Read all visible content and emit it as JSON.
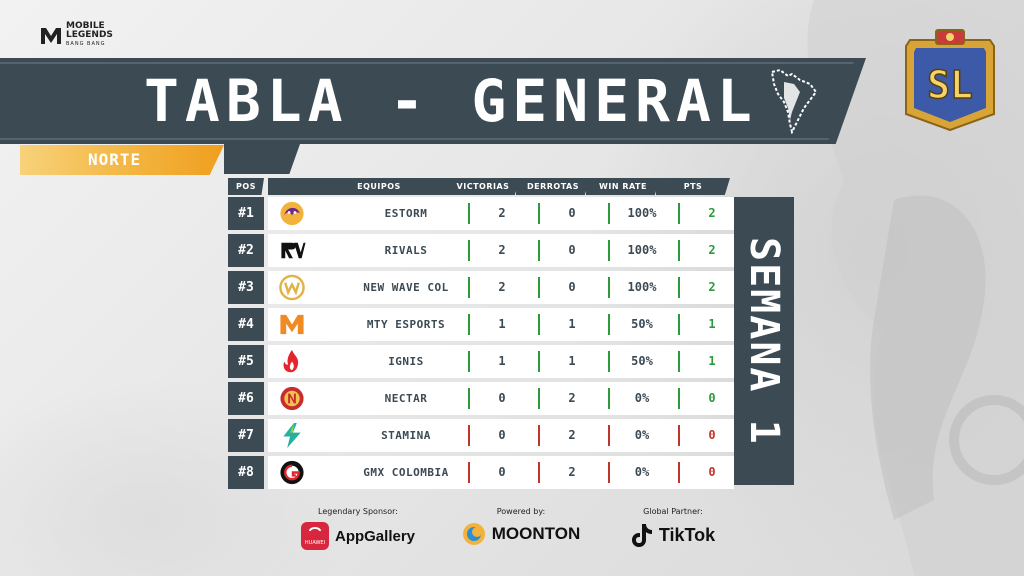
{
  "brand": {
    "logo_line1": "MOBILE",
    "logo_line2": "LEGENDS",
    "logo_sub": "BANG BANG"
  },
  "title": "TABLA - GENERAL",
  "region_tab": "NORTE",
  "week_label": "SEMANA 1",
  "table": {
    "headers": {
      "pos": "POS",
      "team": "EQUIPOS",
      "wins": "VICTORIAS",
      "losses": "DERROTAS",
      "winrate": "WIN RATE",
      "pts": "PTS"
    },
    "rows": [
      {
        "pos": "#1",
        "team": "ESTORM",
        "wins": "2",
        "losses": "0",
        "winrate": "100%",
        "pts": "2",
        "status": "green",
        "logo": "estorm-snake-icon"
      },
      {
        "pos": "#2",
        "team": "RIVALS",
        "wins": "2",
        "losses": "0",
        "winrate": "100%",
        "pts": "2",
        "status": "green",
        "logo": "rivals-rv-icon"
      },
      {
        "pos": "#3",
        "team": "NEW WAVE COL",
        "wins": "2",
        "losses": "0",
        "winrate": "100%",
        "pts": "2",
        "status": "green",
        "logo": "new-wave-icon"
      },
      {
        "pos": "#4",
        "team": "MTY ESPORTS",
        "wins": "1",
        "losses": "1",
        "winrate": "50%",
        "pts": "1",
        "status": "green",
        "logo": "mty-m-icon"
      },
      {
        "pos": "#5",
        "team": "IGNIS",
        "wins": "1",
        "losses": "1",
        "winrate": "50%",
        "pts": "1",
        "status": "green",
        "logo": "ignis-flame-icon"
      },
      {
        "pos": "#6",
        "team": "NECTAR",
        "wins": "0",
        "losses": "2",
        "winrate": "0%",
        "pts": "0",
        "status": "green",
        "logo": "nectar-n-icon"
      },
      {
        "pos": "#7",
        "team": "STAMINA",
        "wins": "0",
        "losses": "2",
        "winrate": "0%",
        "pts": "0",
        "status": "red",
        "logo": "stamina-bolt-icon"
      },
      {
        "pos": "#8",
        "team": "GMX COLOMBIA",
        "wins": "0",
        "losses": "2",
        "winrate": "0%",
        "pts": "0",
        "status": "red",
        "logo": "gmx-g-icon"
      }
    ]
  },
  "sponsors": [
    {
      "label": "Legendary Sponsor:",
      "name": "AppGallery",
      "icon": "huawei-appgallery-icon",
      "sub": "HUAWEI"
    },
    {
      "label": "Powered by:",
      "name": "MOONTON",
      "icon": "moonton-icon"
    },
    {
      "label": "Global Partner:",
      "name": "TikTok",
      "icon": "tiktok-icon"
    }
  ],
  "colors": {
    "navy": "#3c4a54",
    "gold": "#f3b23c",
    "green": "#2d9a3c",
    "red": "#c0352b"
  }
}
